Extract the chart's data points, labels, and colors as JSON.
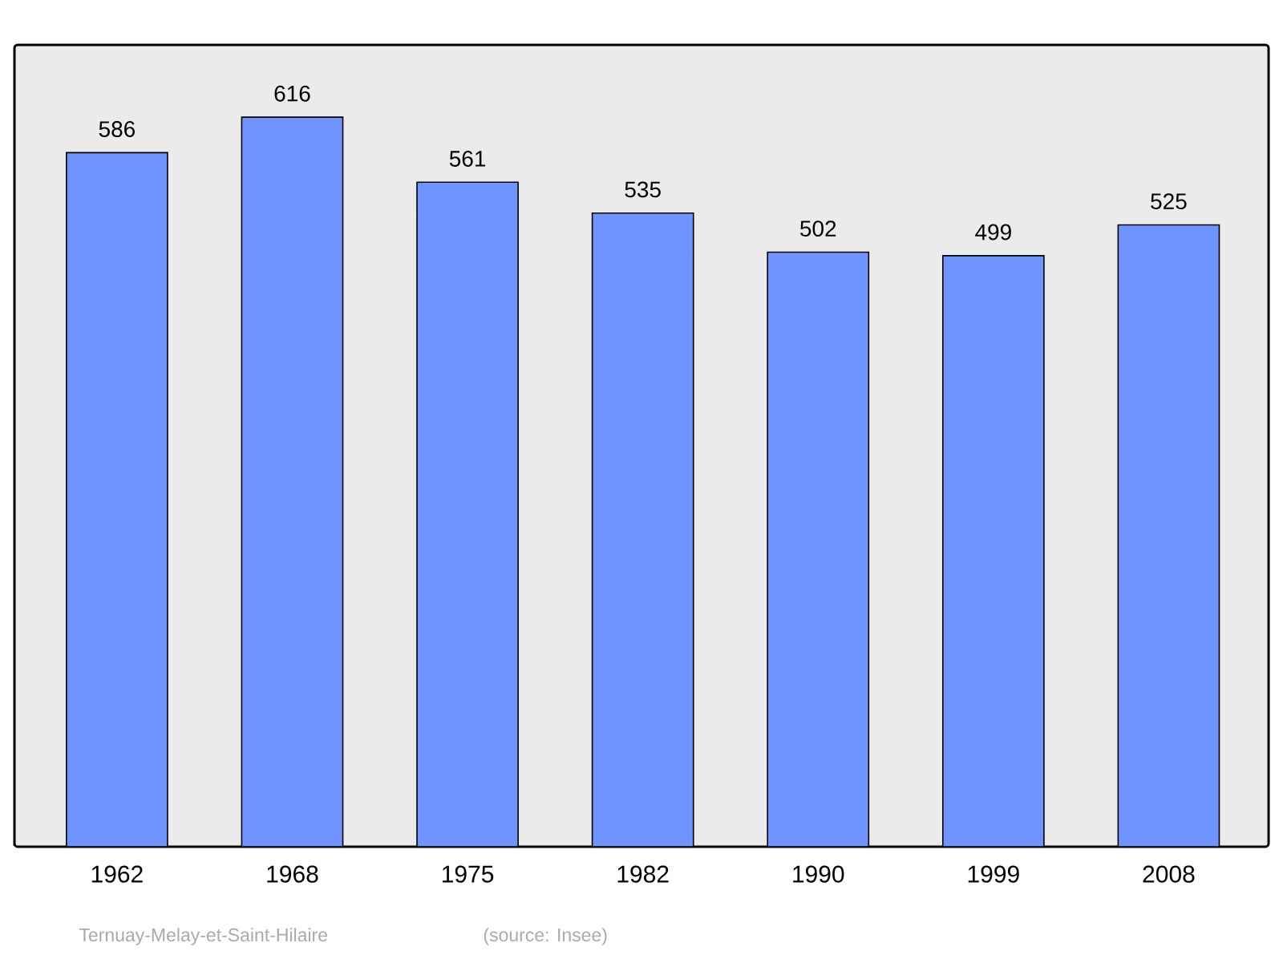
{
  "chart_data": {
    "type": "bar",
    "categories": [
      "1962",
      "1968",
      "1975",
      "1982",
      "1990",
      "1999",
      "2008"
    ],
    "values": [
      586,
      616,
      561,
      535,
      502,
      499,
      525
    ],
    "color": "#7094ff",
    "ylim": [
      0,
      677
    ],
    "data_labels": true,
    "tick_labels": "x",
    "annotations": [
      "Ternuay-Melay-et-Saint-Hilaire",
      "(source: Insee)"
    ]
  }
}
